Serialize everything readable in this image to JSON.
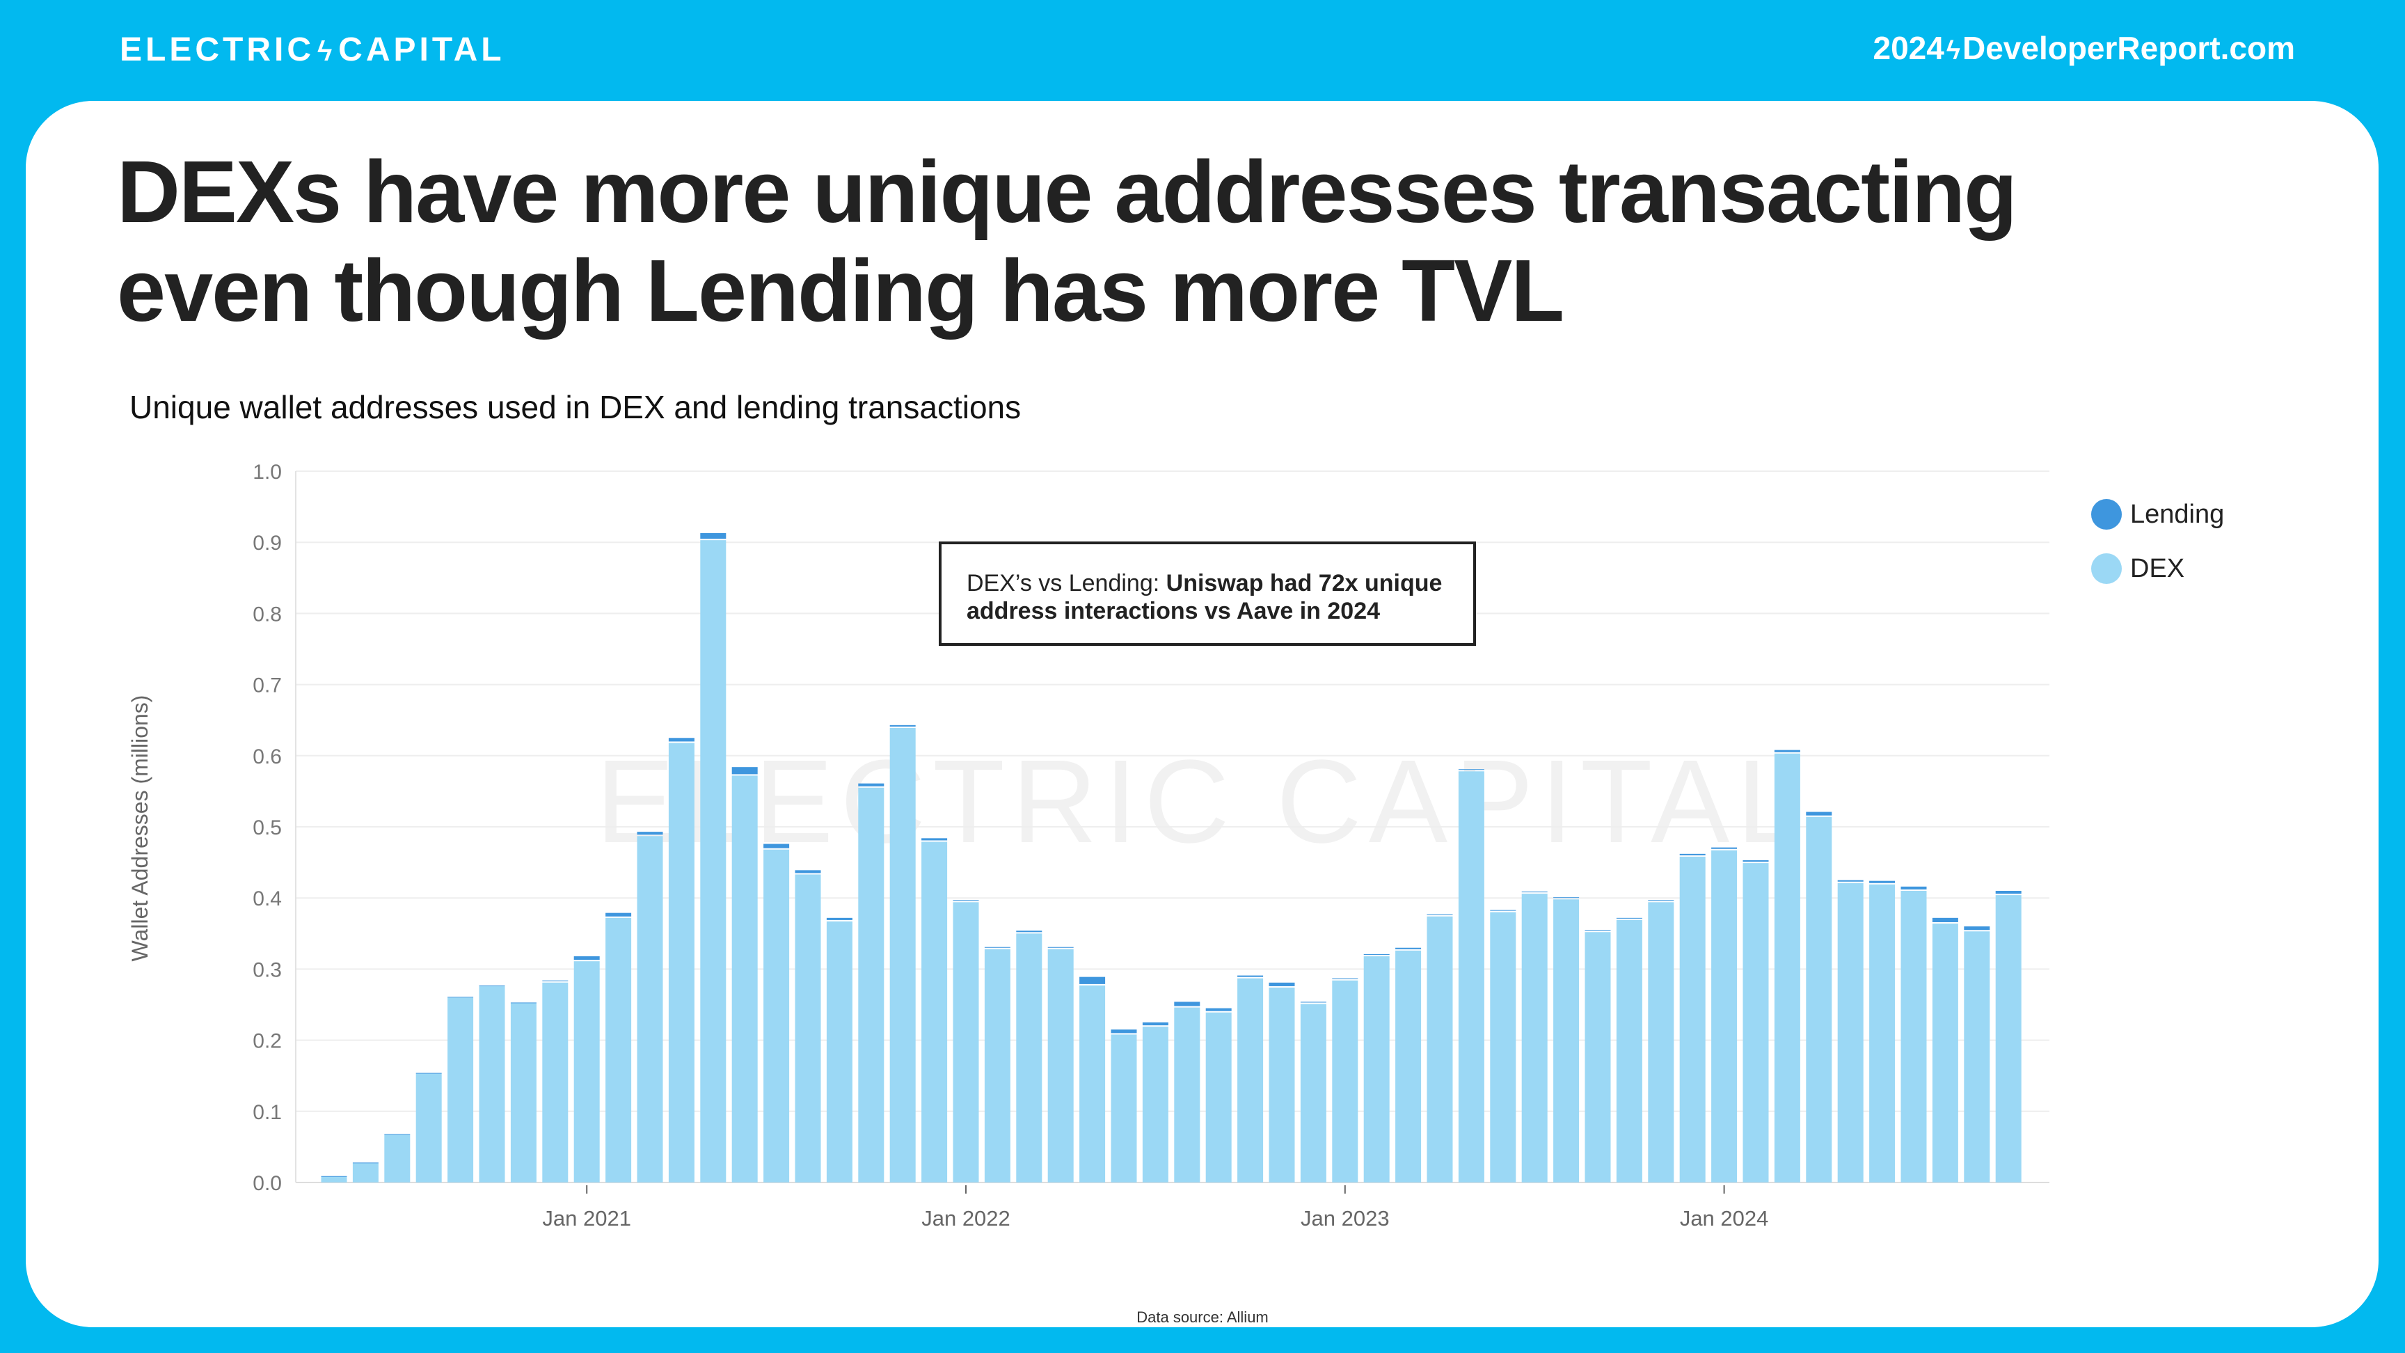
{
  "header": {
    "logo_left": "ELECTRIC",
    "logo_right": "CAPITAL",
    "site_left": "2024",
    "site_right": "DeveloperReport.com"
  },
  "title": "DEXs have more unique addresses transacting even though Lending has more TVL",
  "annotation": {
    "prefix": "DEX’s vs Lending: ",
    "bold": "Uniswap had 72x unique address interactions vs Aave in 2024"
  },
  "source": "Data source: Allium",
  "watermark": "ELECTRIC CAPITAL",
  "colors": {
    "header_bg": "#02B9EF",
    "dex": "#9BD8F5",
    "lending": "#3E96DE"
  },
  "chart_data": {
    "type": "bar",
    "stacked": true,
    "title": "Unique wallet addresses used in DEX and lending transactions",
    "xlabel": "",
    "ylabel": "Wallet Addresses (millions)",
    "ylim": [
      0,
      1.0
    ],
    "yticks": [
      "0.0",
      "0.1",
      "0.2",
      "0.3",
      "0.4",
      "0.5",
      "0.6",
      "0.7",
      "0.8",
      "0.9",
      "1.0"
    ],
    "xticks": [
      {
        "label": "Jan 2021",
        "month": "2021-01"
      },
      {
        "label": "Jan 2022",
        "month": "2022-01"
      },
      {
        "label": "Jan 2023",
        "month": "2023-01"
      },
      {
        "label": "Jan 2024",
        "month": "2024-01"
      }
    ],
    "grid": true,
    "legend": "top-right",
    "categories": [
      "2020-05",
      "2020-06",
      "2020-07",
      "2020-08",
      "2020-09",
      "2020-10",
      "2020-11",
      "2020-12",
      "2021-01",
      "2021-02",
      "2021-03",
      "2021-04",
      "2021-05",
      "2021-06",
      "2021-07",
      "2021-08",
      "2021-09",
      "2021-10",
      "2021-11",
      "2021-12",
      "2022-01",
      "2022-02",
      "2022-03",
      "2022-04",
      "2022-05",
      "2022-06",
      "2022-07",
      "2022-08",
      "2022-09",
      "2022-10",
      "2022-11",
      "2022-12",
      "2023-01",
      "2023-02",
      "2023-03",
      "2023-04",
      "2023-05",
      "2023-06",
      "2023-07",
      "2023-08",
      "2023-09",
      "2023-10",
      "2023-11",
      "2023-12",
      "2024-01",
      "2024-02",
      "2024-03",
      "2024-04",
      "2024-05",
      "2024-06",
      "2024-07",
      "2024-08",
      "2024-09",
      "2024-10"
    ],
    "series": [
      {
        "name": "DEX",
        "values": [
          0.008,
          0.027,
          0.067,
          0.153,
          0.26,
          0.276,
          0.252,
          0.281,
          0.311,
          0.372,
          0.487,
          0.618,
          0.903,
          0.572,
          0.468,
          0.433,
          0.367,
          0.555,
          0.639,
          0.479,
          0.394,
          0.328,
          0.35,
          0.328,
          0.277,
          0.208,
          0.219,
          0.246,
          0.239,
          0.287,
          0.274,
          0.251,
          0.284,
          0.318,
          0.326,
          0.374,
          0.578,
          0.38,
          0.406,
          0.398,
          0.352,
          0.369,
          0.394,
          0.458,
          0.467,
          0.449,
          0.603,
          0.514,
          0.421,
          0.419,
          0.41,
          0.364,
          0.353,
          0.404
        ]
      },
      {
        "name": "Lending",
        "values": [
          0.001,
          0.001,
          0.001,
          0.001,
          0.001,
          0.001,
          0.001,
          0.003,
          0.007,
          0.007,
          0.006,
          0.007,
          0.01,
          0.012,
          0.008,
          0.006,
          0.005,
          0.006,
          0.004,
          0.005,
          0.003,
          0.003,
          0.004,
          0.003,
          0.012,
          0.007,
          0.006,
          0.008,
          0.006,
          0.004,
          0.007,
          0.003,
          0.003,
          0.003,
          0.004,
          0.003,
          0.003,
          0.003,
          0.003,
          0.003,
          0.003,
          0.003,
          0.003,
          0.004,
          0.004,
          0.004,
          0.005,
          0.007,
          0.004,
          0.005,
          0.006,
          0.008,
          0.007,
          0.006
        ]
      }
    ]
  }
}
